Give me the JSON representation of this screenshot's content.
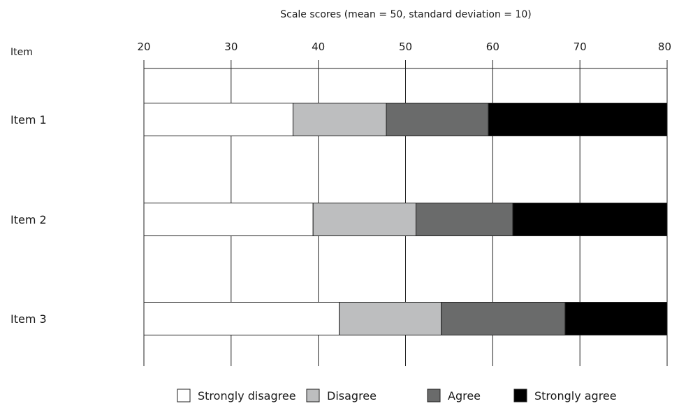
{
  "chart_data": {
    "type": "bar",
    "orientation": "horizontal",
    "stacked": true,
    "title": "",
    "xlabel": "Scale scores (mean = 50, standard deviation = 10)",
    "ylabel": "Item",
    "xlim": [
      20,
      80
    ],
    "xticks": [
      20,
      30,
      40,
      50,
      60,
      70,
      80
    ],
    "grid": true,
    "legend_position": "bottom",
    "categories": [
      "Item 1",
      "Item 2",
      "Item 3"
    ],
    "series": [
      {
        "name": "Strongly disagree",
        "color": "#ffffff",
        "start": [
          20,
          20,
          20
        ],
        "end": [
          37.1,
          39.4,
          42.4
        ]
      },
      {
        "name": "Disagree",
        "color": "#bdbebf",
        "start": [
          37.1,
          39.4,
          42.4
        ],
        "end": [
          47.8,
          51.2,
          54.1
        ]
      },
      {
        "name": "Agree",
        "color": "#6a6b6b",
        "start": [
          47.8,
          51.2,
          54.1
        ],
        "end": [
          59.5,
          62.3,
          68.3
        ]
      },
      {
        "name": "Strongly agree",
        "color": "#000000",
        "start": [
          59.5,
          62.3,
          68.3
        ],
        "end": [
          80,
          80,
          80
        ]
      }
    ]
  }
}
